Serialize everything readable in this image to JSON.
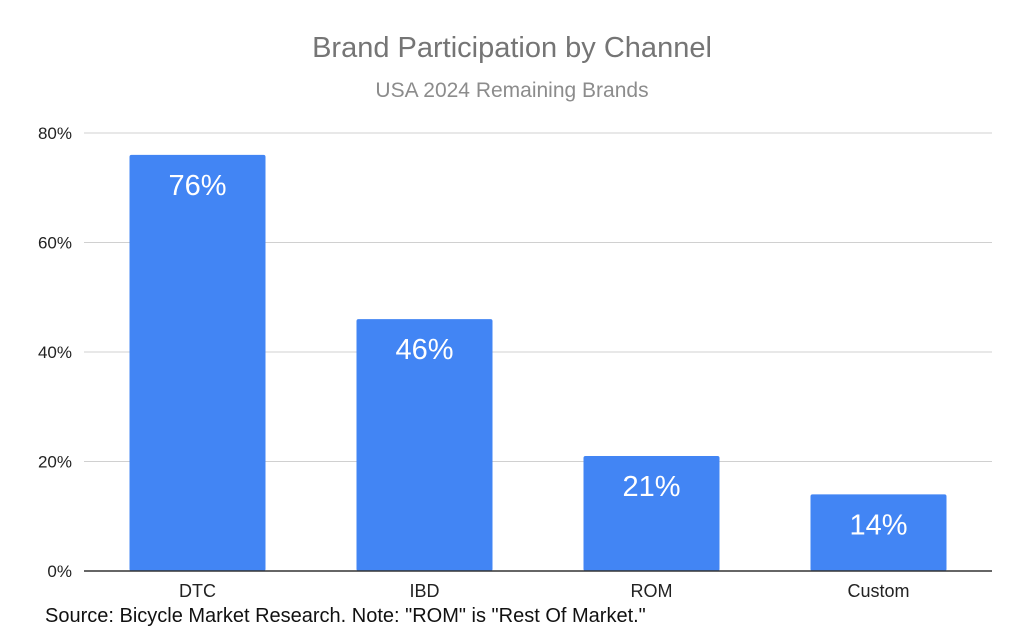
{
  "chart_data": {
    "type": "bar",
    "title": "Brand Participation by Channel",
    "subtitle": "USA 2024 Remaining Brands",
    "categories": [
      "DTC",
      "IBD",
      "ROM",
      "Custom"
    ],
    "values": [
      76,
      46,
      21,
      14
    ],
    "data_labels": [
      "76%",
      "46%",
      "21%",
      "14%"
    ],
    "y_ticks": [
      0,
      20,
      40,
      60,
      80
    ],
    "y_tick_labels": [
      "0%",
      "20%",
      "40%",
      "60%",
      "80%"
    ],
    "ylim": [
      0,
      80
    ],
    "xlabel": "",
    "ylabel": "",
    "grid": true,
    "legend": "none",
    "colors": {
      "bar": "#4285f4",
      "grid": "#d0d0d0",
      "axis": "#333333"
    }
  },
  "footer": {
    "source_note": "Source: Bicycle Market Research. Note: \"ROM\" is \"Rest Of Market.\""
  }
}
